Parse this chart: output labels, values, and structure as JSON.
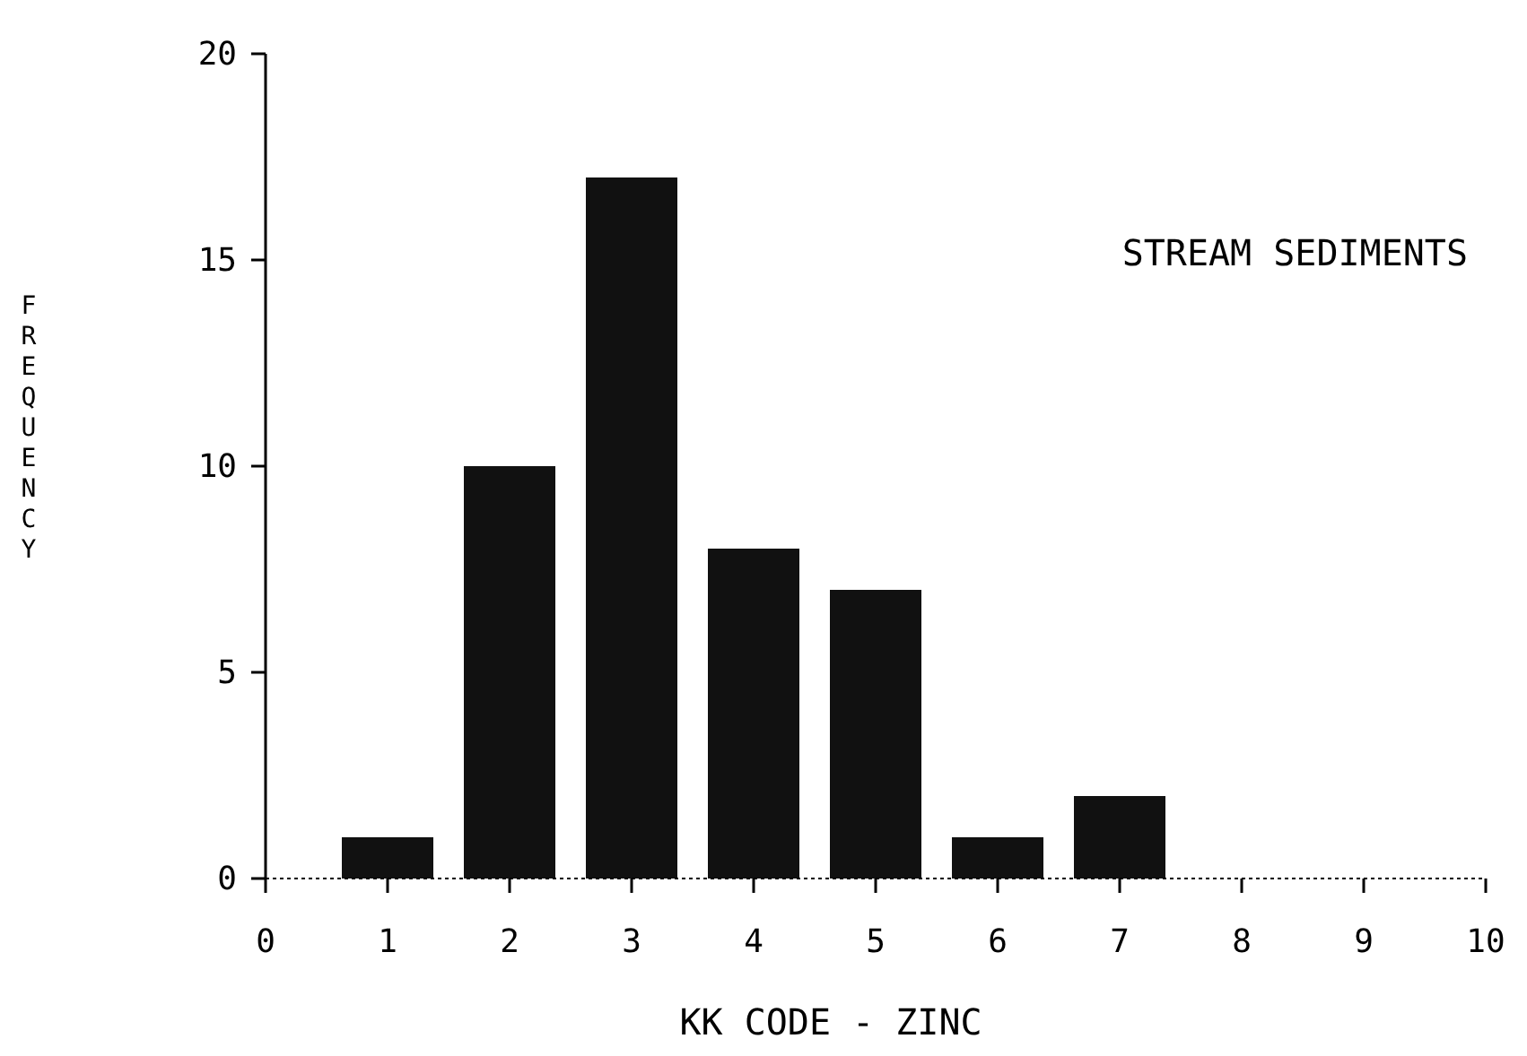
{
  "chart_data": {
    "type": "bar",
    "x": [
      1,
      2,
      3,
      4,
      5,
      6,
      7
    ],
    "values": [
      1,
      10,
      17,
      8,
      7,
      1,
      2
    ],
    "color": "#111111",
    "xlim": [
      0,
      10
    ],
    "xticks": [
      0,
      1,
      2,
      3,
      4,
      5,
      6,
      7,
      8,
      9,
      10
    ],
    "ylim": [
      0,
      20
    ],
    "yticks": [
      0,
      5,
      10,
      15,
      20
    ],
    "xlabel": "KK CODE - ZINC",
    "ylabel": "FREQUENCY",
    "annotations": [
      "STREAM SEDIMENTS"
    ],
    "grid": false
  }
}
